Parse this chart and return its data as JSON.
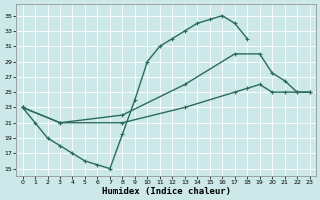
{
  "bg_color": "#cce8e8",
  "grid_color": "#b8d8d8",
  "line_color": "#2a6b5e",
  "line_width": 1.0,
  "marker": "+",
  "marker_size": 3.5,
  "marker_lw": 0.8,
  "xlabel": "Humidex (Indice chaleur)",
  "xlabel_fontsize": 6.5,
  "ylabel_ticks": [
    15,
    17,
    19,
    21,
    23,
    25,
    27,
    29,
    31,
    33,
    35
  ],
  "xlabel_ticks": [
    0,
    1,
    2,
    3,
    4,
    5,
    6,
    7,
    8,
    9,
    10,
    11,
    12,
    13,
    14,
    15,
    16,
    17,
    18,
    19,
    20,
    21,
    22,
    23
  ],
  "xlim": [
    -0.5,
    23.5
  ],
  "ylim": [
    14.0,
    36.5
  ],
  "curve1_x": [
    0,
    1,
    2,
    3,
    4,
    5,
    6,
    7,
    8,
    9,
    10,
    11,
    12,
    13,
    14,
    15,
    16,
    17,
    18
  ],
  "curve1_y": [
    23,
    21,
    19,
    18,
    17,
    16,
    15.5,
    15,
    19.5,
    24,
    29,
    31,
    32,
    33,
    34,
    34.5,
    35,
    34,
    32
  ],
  "curve2_x": [
    0,
    3,
    8,
    13,
    17,
    19,
    20,
    21,
    22,
    23
  ],
  "curve2_y": [
    23,
    21,
    22,
    26,
    30,
    30,
    27.5,
    26.5,
    25,
    25
  ],
  "curve3_x": [
    0,
    3,
    8,
    13,
    17,
    18,
    19,
    20,
    21,
    22,
    23
  ],
  "curve3_y": [
    23,
    21,
    21,
    23,
    25,
    25.5,
    26,
    25,
    25,
    25,
    25
  ]
}
